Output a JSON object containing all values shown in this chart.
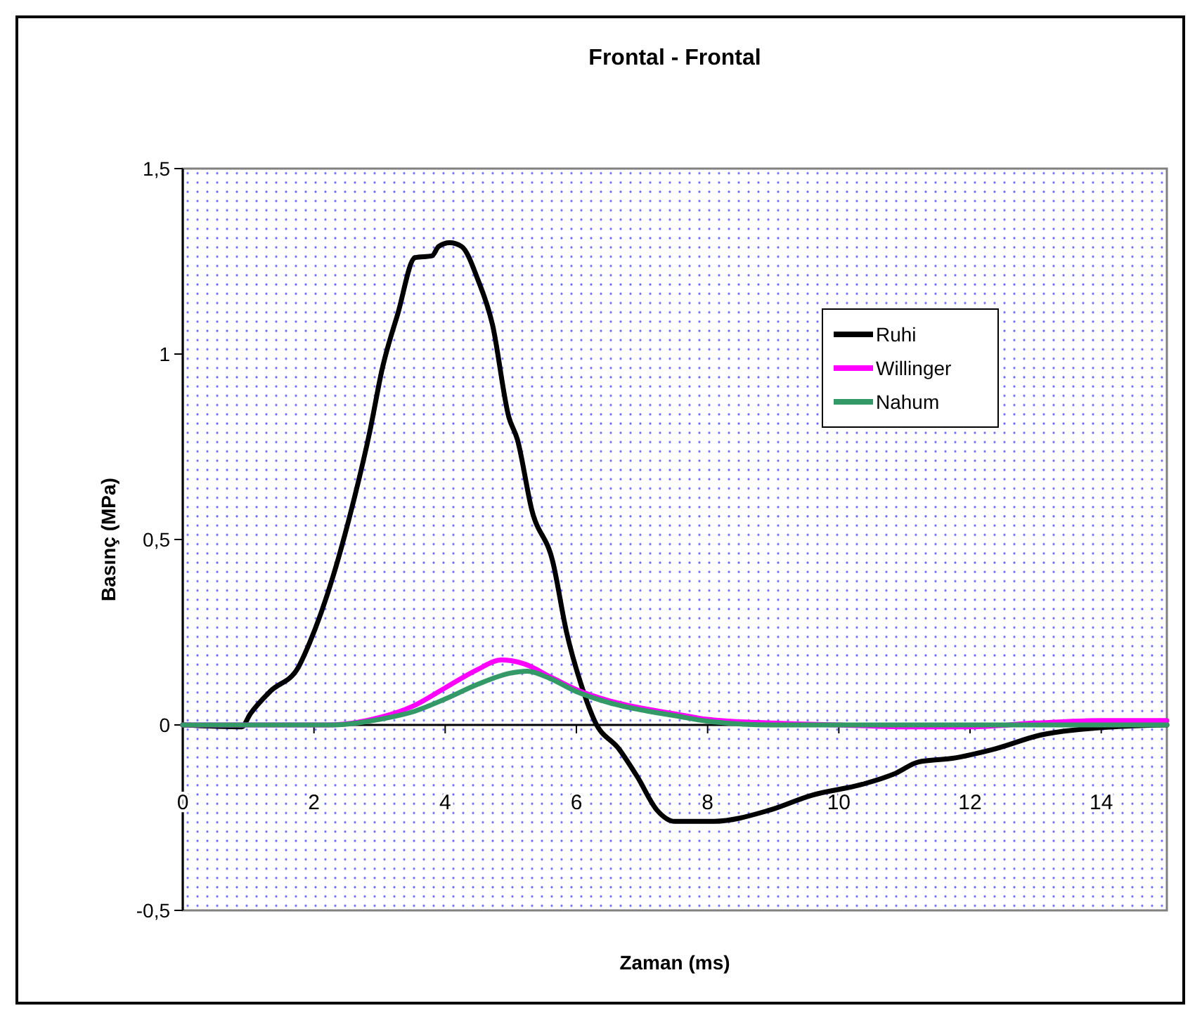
{
  "chart_data": {
    "type": "line",
    "title": "Frontal - Frontal",
    "xlabel": "Zaman (ms)",
    "ylabel": "Basınç (MPa)",
    "xlim": [
      0,
      15
    ],
    "ylim": [
      -0.5,
      1.5
    ],
    "xticks": [
      0,
      2,
      4,
      6,
      8,
      10,
      12,
      14
    ],
    "yticks": [
      {
        "value": -0.5,
        "label": "-0,5"
      },
      0,
      {
        "value": 0.5,
        "label": "0,5"
      },
      1,
      {
        "value": 1.5,
        "label": "1,5"
      }
    ],
    "legend": "top right",
    "marker": "none",
    "line_style": "solid",
    "series": [
      {
        "name": "Ruhi",
        "color": "#000000",
        "x": [
          0,
          0.9,
          1.03,
          1.33,
          1.76,
          1.93,
          2.29,
          2.57,
          2.85,
          3.04,
          3.28,
          3.54,
          3.8,
          3.9,
          4.07,
          4.25,
          4.5,
          4.72,
          4.97,
          5.1,
          5.32,
          5.64,
          5.85,
          6.07,
          6.28,
          6.65,
          6.93,
          7.23,
          7.5,
          8.08,
          8.94,
          9.58,
          10.36,
          10.87,
          11.21,
          11.73,
          12.37,
          13.08,
          13.94,
          15
        ],
        "values": [
          0,
          -0.005,
          0.03,
          0.09,
          0.155,
          0.22,
          0.4,
          0.58,
          0.79,
          0.96,
          1.11,
          1.26,
          1.265,
          1.29,
          1.3,
          1.29,
          1.2,
          1.08,
          0.83,
          0.77,
          0.58,
          0.44,
          0.25,
          0.11,
          0.01,
          -0.065,
          -0.14,
          -0.23,
          -0.26,
          -0.26,
          -0.23,
          -0.19,
          -0.16,
          -0.13,
          -0.1,
          -0.09,
          -0.065,
          -0.027,
          -0.008,
          0
        ]
      },
      {
        "name": "Willinger",
        "color": "#ff00ff",
        "x": [
          0,
          2.2,
          3,
          3.5,
          4,
          4.5,
          4.85,
          5.2,
          5.6,
          6,
          6.5,
          7,
          7.5,
          8,
          9,
          10,
          11,
          12,
          13,
          14,
          15
        ],
        "values": [
          0,
          0,
          0.02,
          0.05,
          0.1,
          0.15,
          0.175,
          0.165,
          0.13,
          0.095,
          0.065,
          0.045,
          0.03,
          0.015,
          0.005,
          0,
          -0.005,
          -0.005,
          0.005,
          0.012,
          0.012
        ]
      },
      {
        "name": "Nahum",
        "color": "#339966",
        "x": [
          0,
          2.3,
          3,
          3.5,
          4,
          4.5,
          5,
          5.25,
          5.6,
          6,
          6.5,
          7,
          7.5,
          8,
          9,
          15
        ],
        "values": [
          0,
          0,
          0.015,
          0.035,
          0.07,
          0.11,
          0.14,
          0.145,
          0.125,
          0.09,
          0.06,
          0.04,
          0.025,
          0.01,
          0,
          0
        ]
      }
    ]
  }
}
